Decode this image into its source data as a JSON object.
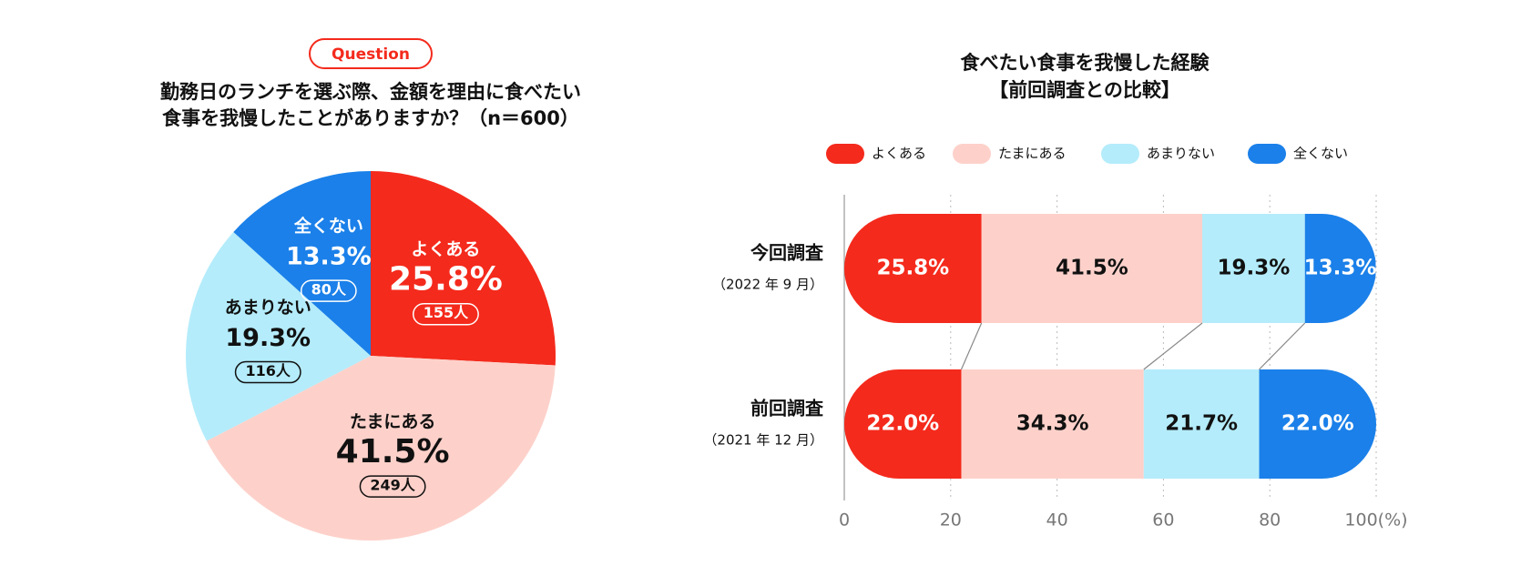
{
  "chart_data": [
    {
      "type": "pie",
      "badge": "Question",
      "title": [
        "勤務日のランチを選ぶ際、金額を理由に食べたい",
        "食事を我慢したことがありますか？（n＝600）"
      ],
      "categories": [
        "よくある",
        "たまにある",
        "あまりない",
        "全くない"
      ],
      "values": [
        25.8,
        41.5,
        19.3,
        13.3
      ],
      "value_labels": [
        "25.8%",
        "41.5%",
        "19.3%",
        "13.3%"
      ],
      "count_labels": [
        "155人",
        "249人",
        "116人",
        "80人"
      ],
      "colors": [
        "#f42a1c",
        "#fdd1ca",
        "#b4ecfb",
        "#1b80e9"
      ]
    },
    {
      "type": "stacked-bar-horizontal",
      "title": [
        "食べたい食事を我慢した経験",
        "【前回調査との比較】"
      ],
      "categories": [
        "今回調査",
        "前回調査"
      ],
      "category_notes": [
        "（2022 年 9 月）",
        "（2021 年 12 月）"
      ],
      "series": [
        {
          "name": "よくある",
          "color": "#f42a1c",
          "values": [
            25.8,
            22.0
          ],
          "value_labels": [
            "25.8%",
            "22.0%"
          ]
        },
        {
          "name": "たまにある",
          "color": "#fdd1ca",
          "values": [
            41.5,
            34.3
          ],
          "value_labels": [
            "41.5%",
            "34.3%"
          ]
        },
        {
          "name": "あまりない",
          "color": "#b4ecfb",
          "values": [
            19.3,
            21.7
          ],
          "value_labels": [
            "19.3%",
            "21.7%"
          ]
        },
        {
          "name": "全くない",
          "color": "#1b80e9",
          "values": [
            13.3,
            22.0
          ],
          "value_labels": [
            "13.3%",
            "22.0%"
          ]
        }
      ],
      "xlim": [
        0,
        100
      ],
      "xticks": [
        0,
        20,
        40,
        60,
        80,
        {
          "value": 100,
          "label": "100(%)"
        }
      ],
      "grid": true
    }
  ]
}
